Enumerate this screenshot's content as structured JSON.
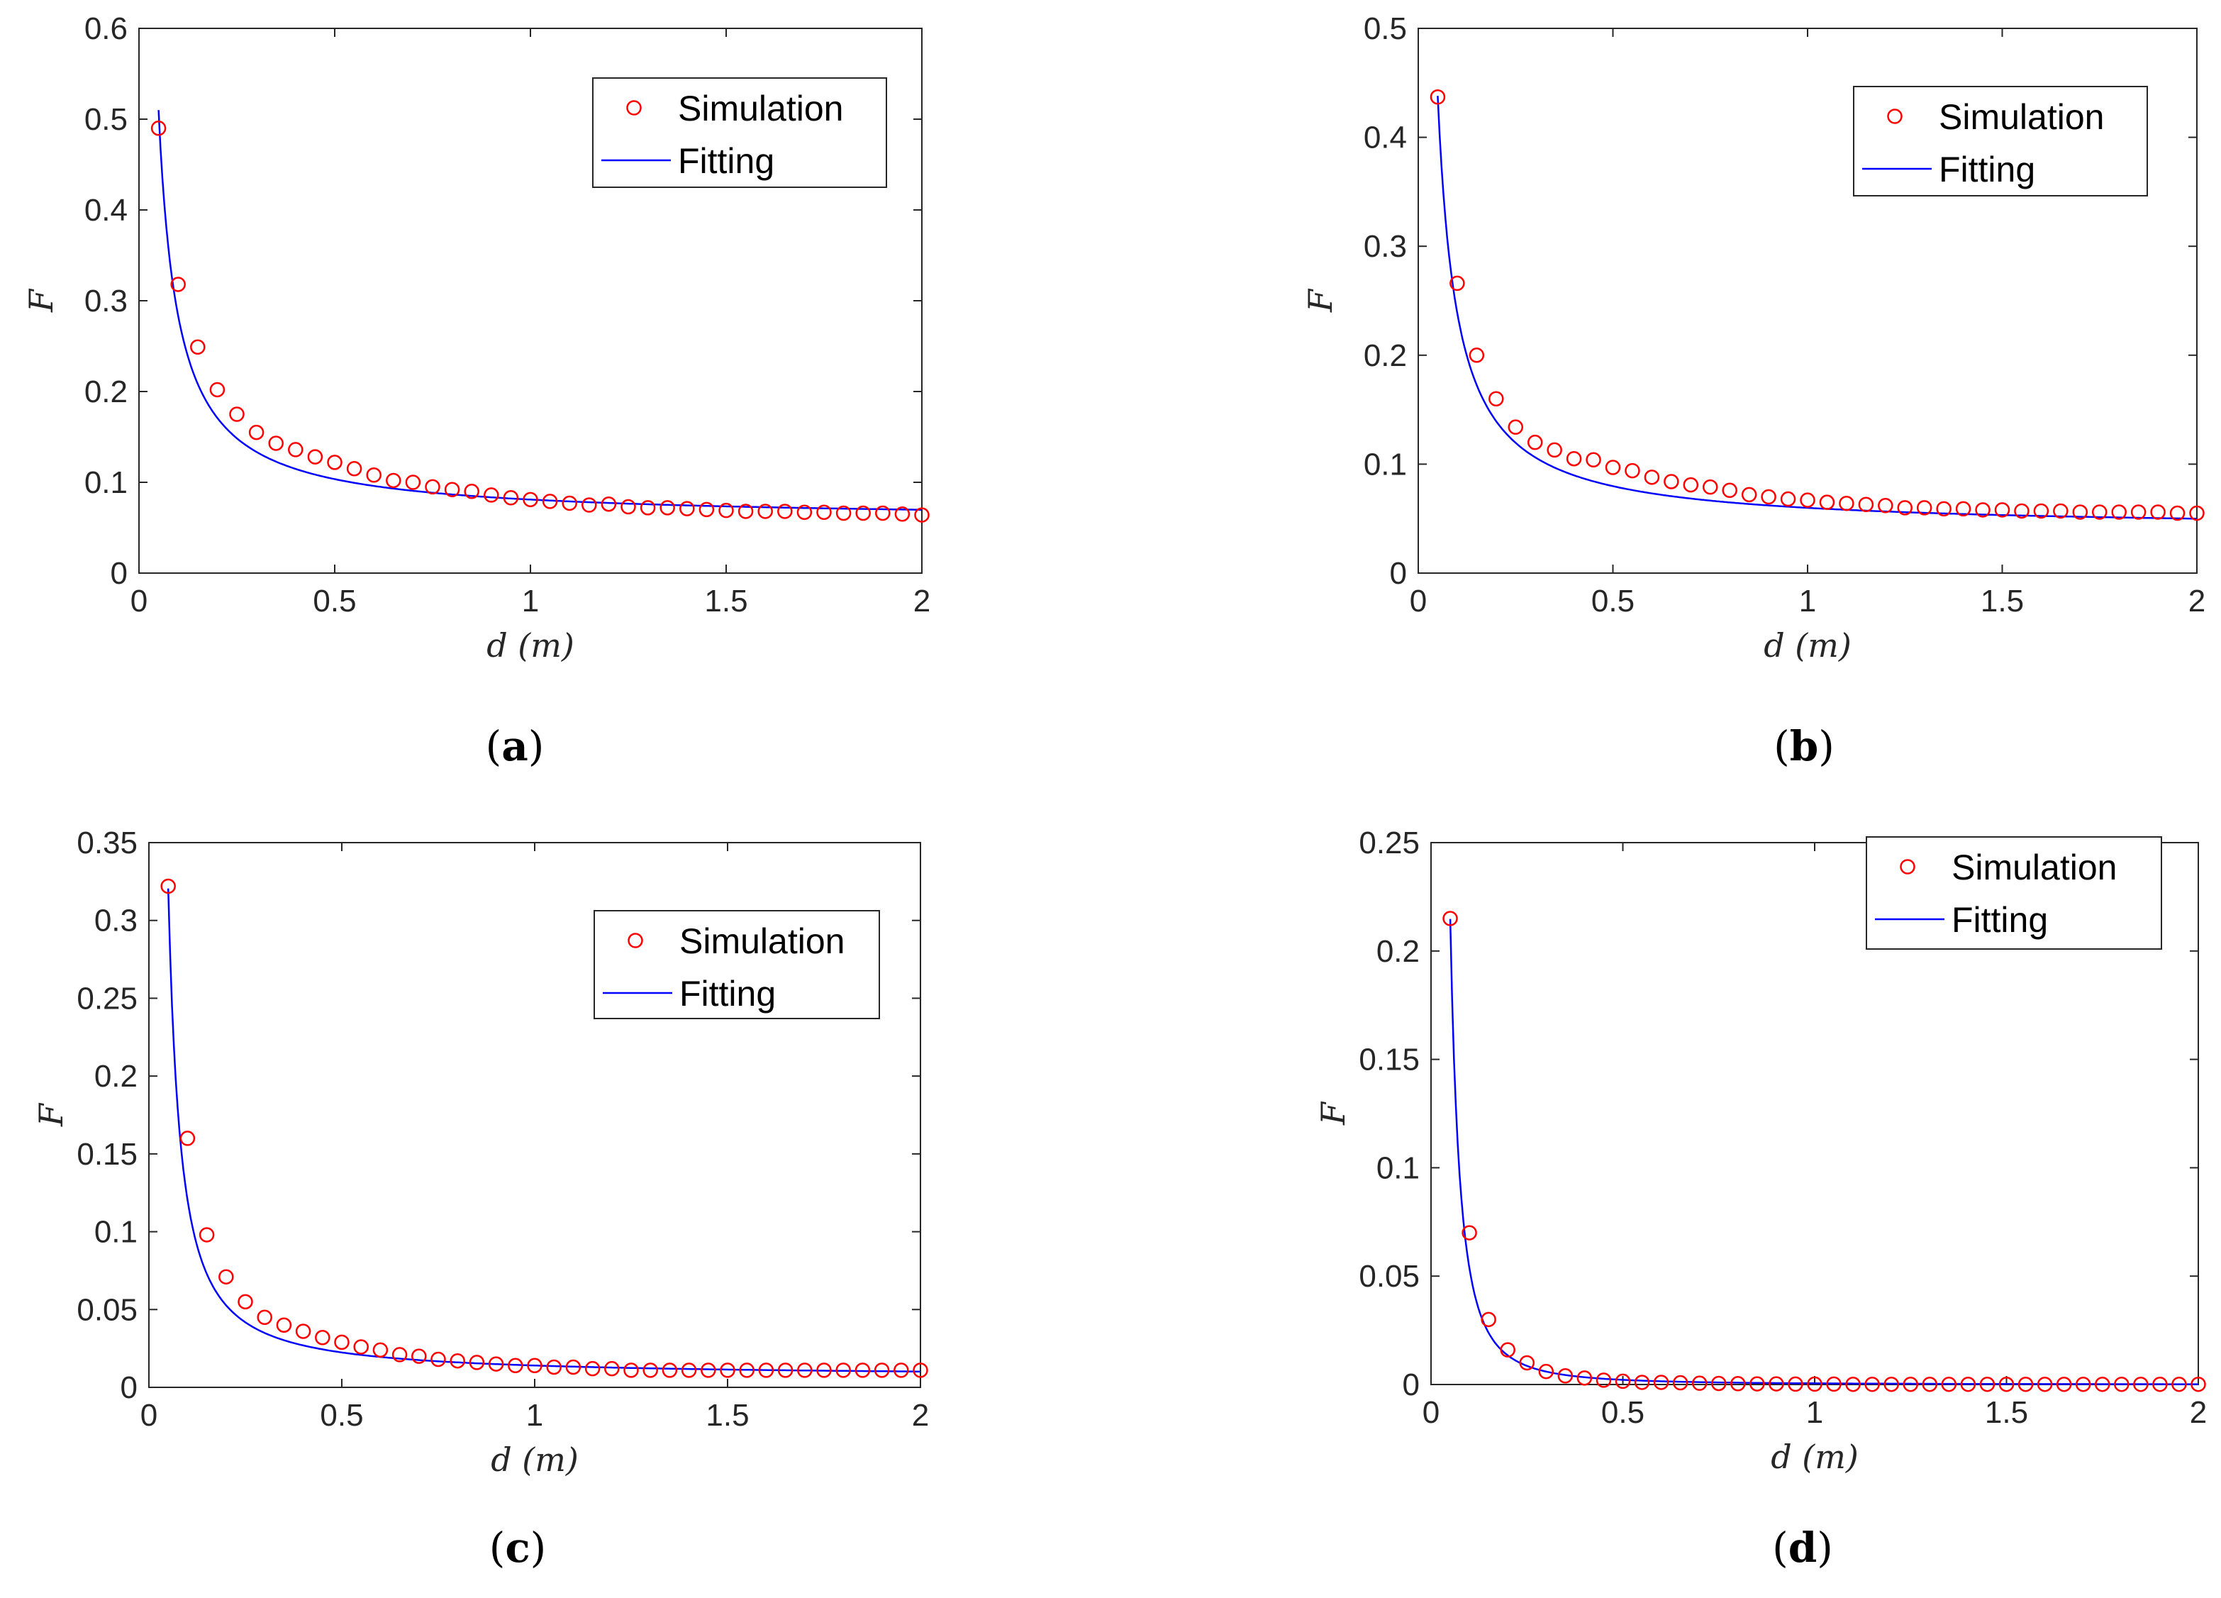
{
  "chart_data": [
    {
      "id": "a",
      "type": "line",
      "caption_letter": "a",
      "xlabel": "d (m)",
      "ylabel": "F",
      "xlim": [
        0,
        2
      ],
      "ylim": [
        0,
        0.6
      ],
      "xticks": [
        "0",
        "0.5",
        "1",
        "1.5",
        "2"
      ],
      "xtick_values": [
        0,
        0.5,
        1,
        1.5,
        2
      ],
      "yticks": [
        "0",
        "0.1",
        "0.2",
        "0.3",
        "0.4",
        "0.5",
        "0.6"
      ],
      "ytick_values": [
        0,
        0.1,
        0.2,
        0.3,
        0.4,
        0.5,
        0.6
      ],
      "legend_position": "top-right",
      "series": [
        {
          "name": "Simulation",
          "style": "markers",
          "color": "#ff0000",
          "fit_a": 0.0225,
          "fit_b": 0.0585,
          "x_start": 0.05,
          "x_step": 0.05,
          "x_end": 2.0,
          "values": [
            0.49,
            0.318,
            0.249,
            0.202,
            0.175,
            0.155,
            0.143,
            0.136,
            0.128,
            0.122,
            0.115,
            0.108,
            0.102,
            0.1,
            0.095,
            0.092,
            0.09,
            0.086,
            0.083,
            0.081,
            0.079,
            0.077,
            0.075,
            0.076,
            0.073,
            0.072,
            0.072,
            0.071,
            0.07,
            0.069,
            0.068,
            0.068,
            0.068,
            0.067,
            0.067,
            0.066,
            0.066,
            0.066,
            0.065,
            0.064
          ]
        },
        {
          "name": "Fitting",
          "style": "line",
          "color": "#0000ff",
          "fit": "a/x + b",
          "fit_a": 0.0225,
          "fit_b": 0.0585
        }
      ]
    },
    {
      "id": "b",
      "type": "line",
      "caption_letter": "b",
      "xlabel": "d (m)",
      "ylabel": "F",
      "xlim": [
        0,
        2
      ],
      "ylim": [
        0,
        0.5
      ],
      "xticks": [
        "0",
        "0.5",
        "1",
        "1.5",
        "2"
      ],
      "xtick_values": [
        0,
        0.5,
        1,
        1.5,
        2
      ],
      "yticks": [
        "0",
        "0.1",
        "0.2",
        "0.3",
        "0.4",
        "0.5"
      ],
      "ytick_values": [
        0,
        0.1,
        0.2,
        0.3,
        0.4,
        0.5
      ],
      "legend_position": "top-right",
      "series": [
        {
          "name": "Simulation",
          "style": "markers",
          "color": "#ff0000",
          "x_start": 0.05,
          "x_step": 0.05,
          "x_end": 2.0,
          "values": [
            0.437,
            0.266,
            0.2,
            0.16,
            0.134,
            0.12,
            0.113,
            0.105,
            0.104,
            0.097,
            0.094,
            0.088,
            0.084,
            0.081,
            0.079,
            0.076,
            0.072,
            0.07,
            0.068,
            0.067,
            0.065,
            0.064,
            0.063,
            0.062,
            0.06,
            0.06,
            0.059,
            0.059,
            0.058,
            0.058,
            0.057,
            0.057,
            0.057,
            0.056,
            0.056,
            0.056,
            0.056,
            0.056,
            0.055,
            0.055
          ]
        },
        {
          "name": "Fitting",
          "style": "line",
          "color": "#0000ff",
          "fit": "a/x + b",
          "fit_a": 0.0199,
          "fit_b": 0.04
        }
      ]
    },
    {
      "id": "c",
      "type": "line",
      "caption_letter": "c",
      "xlabel": "d (m)",
      "ylabel": "F",
      "xlim": [
        0,
        2
      ],
      "ylim": [
        0,
        0.35
      ],
      "xticks": [
        "0",
        "0.5",
        "1",
        "1.5",
        "2"
      ],
      "xtick_values": [
        0,
        0.5,
        1,
        1.5,
        2
      ],
      "yticks": [
        "0",
        "0.05",
        "0.1",
        "0.15",
        "0.2",
        "0.25",
        "0.3",
        "0.35"
      ],
      "ytick_values": [
        0,
        0.05,
        0.1,
        0.15,
        0.2,
        0.25,
        0.3,
        0.35
      ],
      "legend_position": "top-right",
      "series": [
        {
          "name": "Simulation",
          "style": "markers",
          "color": "#ff0000",
          "x_start": 0.05,
          "x_step": 0.05,
          "x_end": 2.0,
          "values": [
            0.322,
            0.16,
            0.098,
            0.071,
            0.055,
            0.045,
            0.04,
            0.036,
            0.032,
            0.029,
            0.026,
            0.024,
            0.021,
            0.02,
            0.018,
            0.017,
            0.016,
            0.015,
            0.014,
            0.014,
            0.013,
            0.013,
            0.012,
            0.012,
            0.011,
            0.011,
            0.011,
            0.011,
            0.011,
            0.011,
            0.011,
            0.011,
            0.011,
            0.011,
            0.011,
            0.011,
            0.011,
            0.011,
            0.011,
            0.011
          ]
        },
        {
          "name": "Fitting",
          "style": "line",
          "color": "#0000ff",
          "fit": "a/x^2 + c/x + b",
          "fit_a": 0.00043,
          "fit_b": 0.0065,
          "fit_c": 0.0071
        }
      ]
    },
    {
      "id": "d",
      "type": "line",
      "caption_letter": "d",
      "xlabel": "d (m)",
      "ylabel": "F",
      "xlim": [
        0,
        2
      ],
      "ylim": [
        0,
        0.25
      ],
      "xticks": [
        "0",
        "0.5",
        "1",
        "1.5",
        "2"
      ],
      "xtick_values": [
        0,
        0.5,
        1,
        1.5,
        2
      ],
      "yticks": [
        "0",
        "0.05",
        "0.1",
        "0.15",
        "0.2",
        "0.25"
      ],
      "ytick_values": [
        0,
        0.05,
        0.1,
        0.15,
        0.2,
        0.25
      ],
      "legend_position": "top-right",
      "series": [
        {
          "name": "Simulation",
          "style": "markers",
          "color": "#ff0000",
          "x_start": 0.05,
          "x_step": 0.05,
          "x_end": 2.0,
          "values": [
            0.215,
            0.07,
            0.03,
            0.016,
            0.01,
            0.006,
            0.004,
            0.003,
            0.002,
            0.0015,
            0.001,
            0.001,
            0.0008,
            0.0006,
            0.0005,
            0.0004,
            0.0003,
            0.0003,
            0.0002,
            0.0002,
            0.0002,
            0.0001,
            0.0001,
            0.0001,
            0.0001,
            0.0001,
            0.0001,
            0.0001,
            0.0001,
            0.0001,
            0.0001,
            0.0001,
            0.0001,
            0.0001,
            0.0001,
            0.0001,
            0.0001,
            0.0001,
            0.0001,
            0.0001
          ]
        },
        {
          "name": "Fitting",
          "style": "line",
          "color": "#0000ff",
          "fit": "a*x^-p",
          "fit_a": 0.000537,
          "fit_p": 2.0
        }
      ]
    }
  ]
}
